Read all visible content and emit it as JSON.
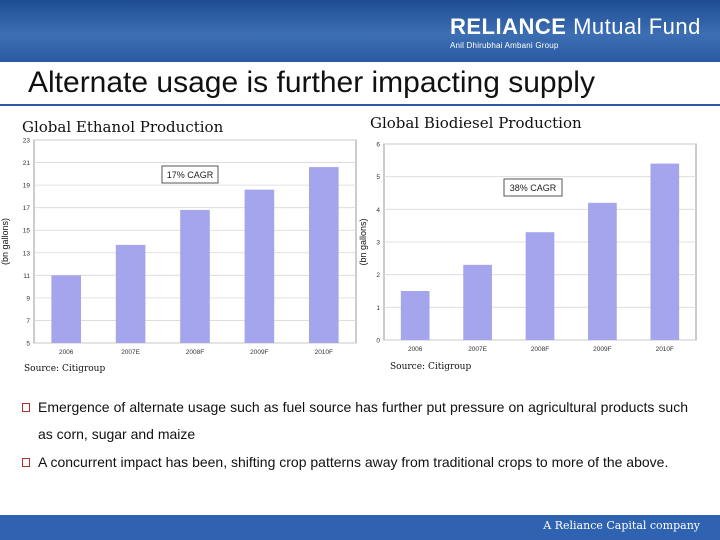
{
  "header": {
    "brand": "RELIANCE",
    "brand_suffix": "Mutual Fund",
    "group": "Anil Dhirubhai Ambani Group"
  },
  "slide_title": "Alternate usage is further impacting supply",
  "footer": "A Reliance Capital company",
  "bullets": [
    "Emergence of alternate usage such as fuel source has further put pressure on agricultural products such as corn, sugar and maize",
    "A concurrent impact has been, shifting crop patterns away from traditional crops to more of the above."
  ],
  "chart_data": [
    {
      "type": "bar",
      "title": "Global Ethanol Production",
      "ylabel": "(bn gallons)",
      "categories": [
        "2006",
        "2007E",
        "2008F",
        "2009F",
        "2010F"
      ],
      "values": [
        11,
        13.7,
        16.8,
        18.6,
        20.6
      ],
      "ylim": [
        5,
        23
      ],
      "yticks": [
        "5",
        "7",
        "9",
        "11",
        "13",
        "15",
        "17",
        "19",
        "21",
        "23"
      ],
      "annotation": "17% CAGR",
      "source": "Source: Citigroup",
      "grid": true,
      "bar_color": "#a5a5ee"
    },
    {
      "type": "bar",
      "title": "Global Biodiesel Production",
      "ylabel": "(bn gallons)",
      "categories": [
        "2006",
        "2007E",
        "2008F",
        "2009F",
        "2010F"
      ],
      "values": [
        1.5,
        2.3,
        3.3,
        4.2,
        5.4
      ],
      "ylim": [
        0,
        6
      ],
      "yticks": [
        "0",
        "1",
        "2",
        "3",
        "4",
        "5",
        "6"
      ],
      "annotation": "38% CAGR",
      "source": "Source: Citigroup",
      "grid": true,
      "bar_color": "#a5a5ee"
    }
  ]
}
